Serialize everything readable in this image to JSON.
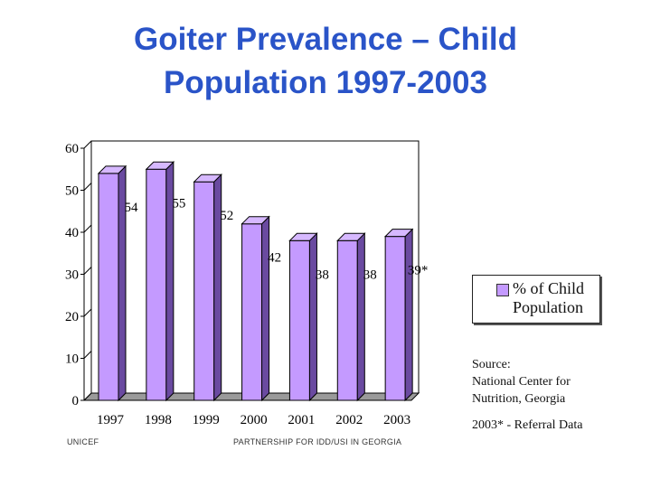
{
  "title": {
    "line1": "Goiter Prevalence – Child",
    "line2": "Population 1997-2003"
  },
  "chart_data": {
    "type": "bar",
    "categories": [
      "1997",
      "1998",
      "1999",
      "2000",
      "2001",
      "2002",
      "2003"
    ],
    "series": [
      {
        "name": "% of Child Population",
        "values": [
          54,
          55,
          52,
          42,
          38,
          38,
          39
        ]
      }
    ],
    "data_labels": [
      "54",
      "55",
      "52",
      "42",
      "38",
      "38",
      "39*"
    ],
    "yticks": [
      "0",
      "10",
      "20",
      "30",
      "40",
      "50",
      "60"
    ],
    "ylim": [
      0,
      60
    ],
    "style": "3d",
    "grid": false,
    "legend": "right",
    "colors": {
      "bar_front": "#c49aff",
      "bar_side": "#6a4aa0",
      "bar_top": "#d6b8ff"
    }
  },
  "legend": {
    "label": "% of Child Population"
  },
  "source": {
    "line1": "Source:",
    "line2": "National Center for",
    "line3": "Nutrition, Georgia"
  },
  "note": "2003* - Referral Data",
  "footer": {
    "left": "UNICEF",
    "center": "PARTNERSHIP FOR IDD/USI IN GEORGIA"
  }
}
